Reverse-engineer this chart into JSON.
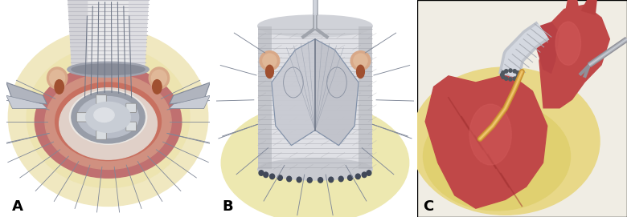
{
  "title": "",
  "panel_labels": [
    "A",
    "B",
    "C"
  ],
  "label_fontsize": 13,
  "label_fontweight": "bold",
  "background_color": "#ffffff",
  "figsize": [
    7.8,
    2.71
  ],
  "dpi": 100,
  "panel_bg": "#ffffff",
  "suture_color": "#8090a8",
  "tissue_yellow": "#e8d898",
  "tissue_pink": "#e8bca0",
  "valve_gray": "#c8ccd5",
  "conduit_gray": "#d8dce8",
  "annulus_red": "#c06060",
  "heart_red": "#b84040",
  "aorta_red": "#c04848"
}
